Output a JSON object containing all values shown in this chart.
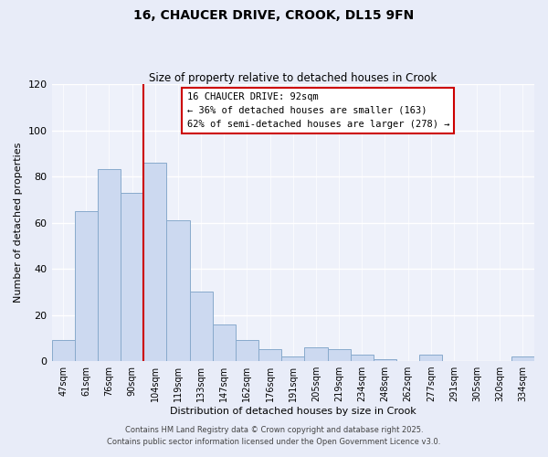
{
  "title": "16, CHAUCER DRIVE, CROOK, DL15 9FN",
  "subtitle": "Size of property relative to detached houses in Crook",
  "xlabel": "Distribution of detached houses by size in Crook",
  "ylabel": "Number of detached properties",
  "bar_labels": [
    "47sqm",
    "61sqm",
    "76sqm",
    "90sqm",
    "104sqm",
    "119sqm",
    "133sqm",
    "147sqm",
    "162sqm",
    "176sqm",
    "191sqm",
    "205sqm",
    "219sqm",
    "234sqm",
    "248sqm",
    "262sqm",
    "277sqm",
    "291sqm",
    "305sqm",
    "320sqm",
    "334sqm"
  ],
  "bar_values": [
    9,
    65,
    83,
    73,
    86,
    61,
    30,
    16,
    9,
    5,
    2,
    6,
    5,
    3,
    1,
    0,
    3,
    0,
    0,
    0,
    2
  ],
  "bar_color": "#ccd9f0",
  "bar_edge_color": "#88aacc",
  "vline_color": "#cc0000",
  "ylim": [
    0,
    120
  ],
  "yticks": [
    0,
    20,
    40,
    60,
    80,
    100,
    120
  ],
  "annotation_title": "16 CHAUCER DRIVE: 92sqm",
  "annotation_line1": "← 36% of detached houses are smaller (163)",
  "annotation_line2": "62% of semi-detached houses are larger (278) →",
  "annotation_box_color": "#ffffff",
  "annotation_box_edge": "#cc0000",
  "footer1": "Contains HM Land Registry data © Crown copyright and database right 2025.",
  "footer2": "Contains public sector information licensed under the Open Government Licence v3.0.",
  "bg_color": "#e8ecf8",
  "plot_bg_color": "#eef1fa"
}
